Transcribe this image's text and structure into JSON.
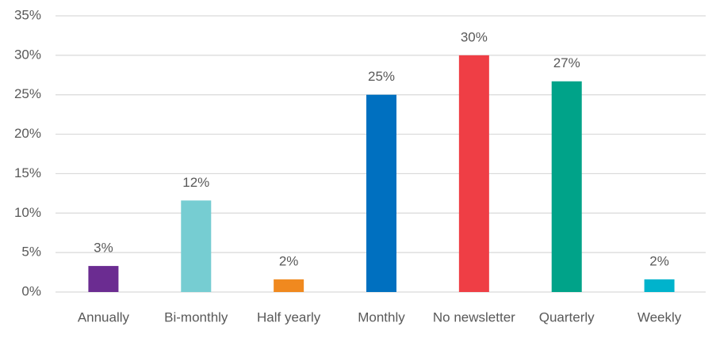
{
  "chart_data": {
    "type": "bar",
    "categories": [
      "Annually",
      "Bi-monthly",
      "Half yearly",
      "Monthly",
      "No newsletter",
      "Quarterly",
      "Weekly"
    ],
    "values": [
      3.3,
      11.6,
      1.6,
      25,
      30,
      26.7,
      1.6
    ],
    "value_labels": [
      "3%",
      "12%",
      "2%",
      "25%",
      "30%",
      "27%",
      "2%"
    ],
    "colors": [
      "#6b2c91",
      "#76cdd2",
      "#f0891f",
      "#0070c0",
      "#ef3e45",
      "#00a389",
      "#00b3cc"
    ],
    "ylim": [
      0,
      35
    ],
    "yticks": [
      {
        "value": 0,
        "label": "0%"
      },
      {
        "value": 5,
        "label": "5%"
      },
      {
        "value": 10,
        "label": "10%"
      },
      {
        "value": 15,
        "label": "15%"
      },
      {
        "value": 20,
        "label": "20%"
      },
      {
        "value": 25,
        "label": "25%"
      },
      {
        "value": 30,
        "label": "30%"
      },
      {
        "value": 35,
        "label": "35%"
      }
    ],
    "grid": true
  }
}
